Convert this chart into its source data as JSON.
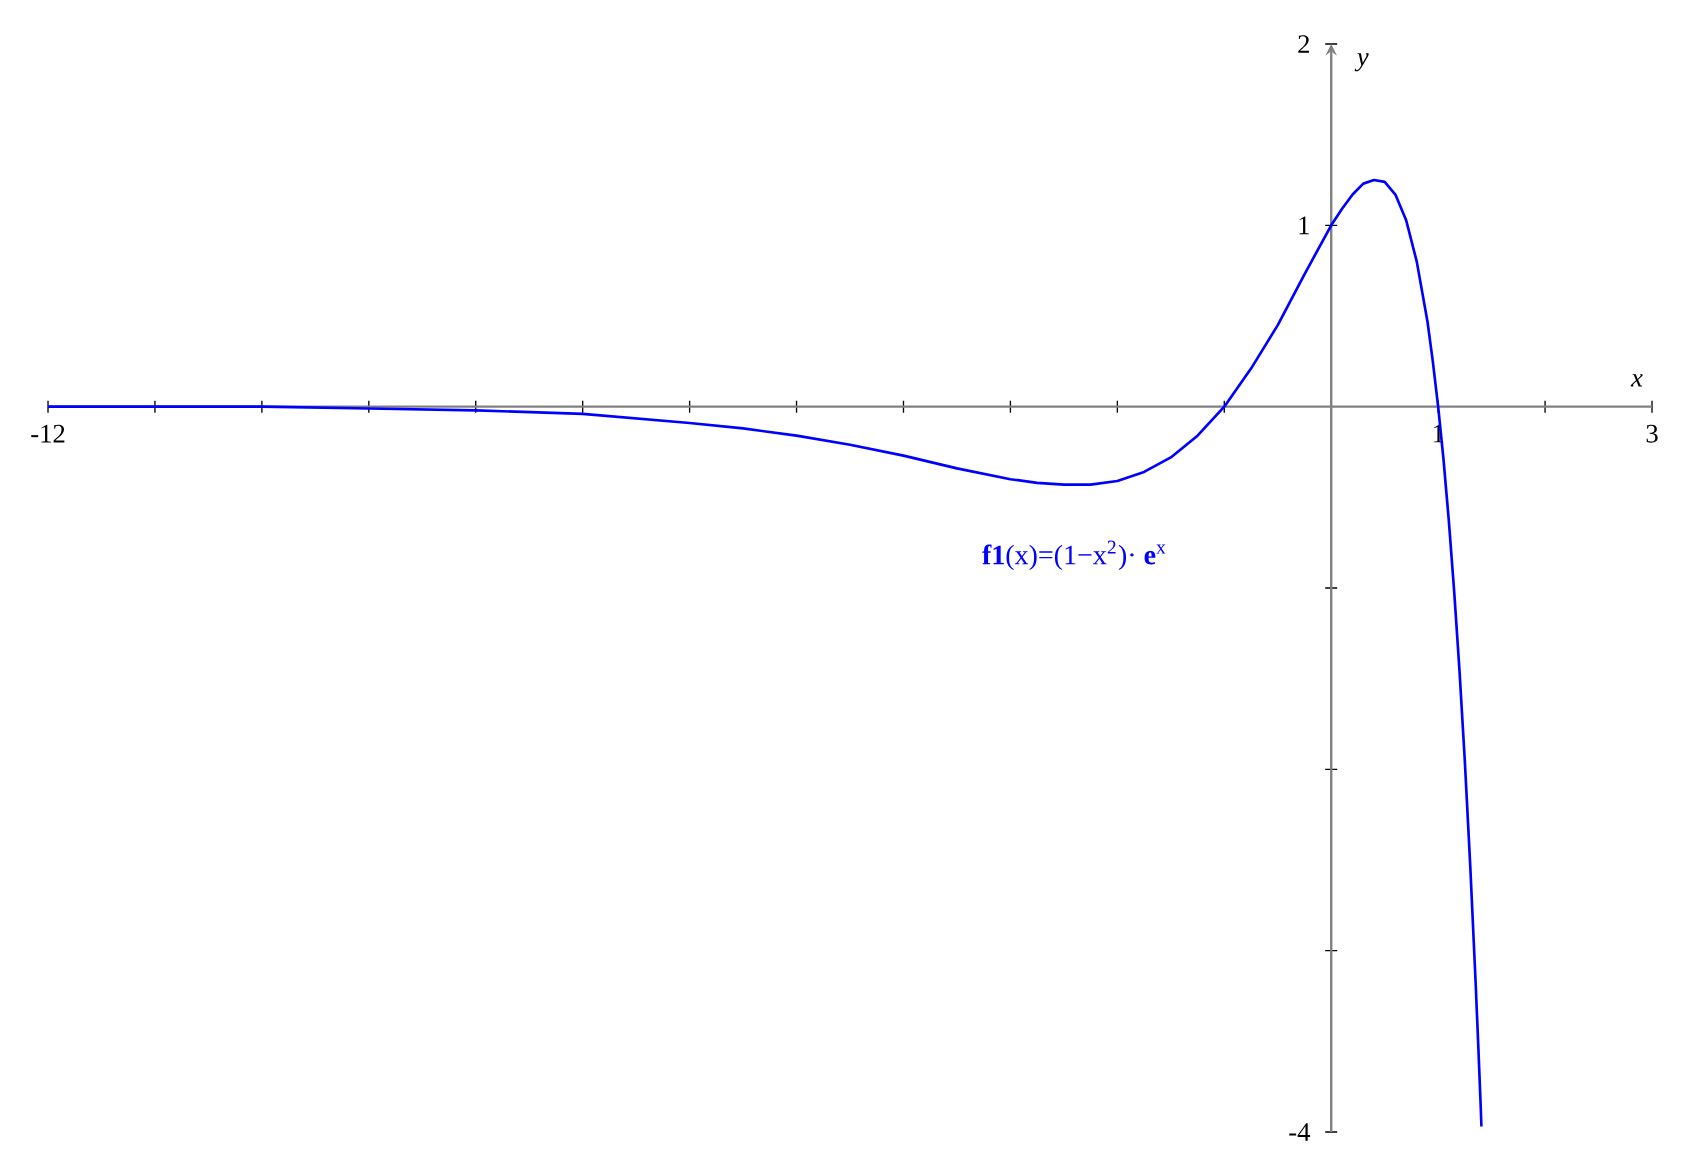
{
  "chart_data": {
    "type": "line",
    "xlabel": "x",
    "ylabel": "y",
    "x": [
      -12,
      -11,
      -10,
      -9,
      -8,
      -7,
      -6,
      -5.5,
      -5,
      -4.5,
      -4,
      -3.5,
      -3,
      -2.75,
      -2.5,
      -2.25,
      -2,
      -1.75,
      -1.5,
      -1.25,
      -1,
      -0.75,
      -0.5,
      -0.25,
      0,
      0.1,
      0.2,
      0.3,
      0.4,
      0.5,
      0.6,
      0.7,
      0.8,
      0.9,
      0.95,
      1,
      1.05,
      1.1,
      1.15,
      1.2,
      1.25,
      1.3,
      1.35,
      1.375,
      1.4,
      1.405
    ],
    "series": [
      {
        "name": "**f1**(x)=(1−x$^{2}$)· **e**$^{x}$",
        "color": "#0000ff",
        "values": [
          0,
          0,
          0,
          -0.01,
          -0.02,
          -0.04,
          -0.09,
          -0.12,
          -0.16,
          -0.21,
          -0.27,
          -0.34,
          -0.4,
          -0.42,
          -0.43,
          -0.43,
          -0.41,
          -0.36,
          -0.28,
          -0.16,
          0,
          0.21,
          0.45,
          0.73,
          1,
          1.09,
          1.17,
          1.23,
          1.25,
          1.24,
          1.17,
          1.03,
          0.8,
          0.47,
          0.25,
          0,
          -0.29,
          -0.63,
          -1.02,
          -1.46,
          -1.96,
          -2.53,
          -3.17,
          -3.52,
          -3.89,
          -3.97
        ]
      }
    ],
    "xlim": [
      -12,
      3
    ],
    "ylim": [
      -4,
      2
    ],
    "xticks": [
      -12,
      {
        "value": -11,
        "label": null
      },
      {
        "value": -10,
        "label": null
      },
      {
        "value": -9,
        "label": null
      },
      {
        "value": -8,
        "label": null
      },
      {
        "value": -7,
        "label": null
      },
      {
        "value": -6,
        "label": null
      },
      {
        "value": -5,
        "label": null
      },
      {
        "value": -4,
        "label": null
      },
      {
        "value": -3,
        "label": null
      },
      {
        "value": -2,
        "label": null
      },
      {
        "value": -1,
        "label": null
      },
      1,
      {
        "value": 2,
        "label": null
      },
      3
    ],
    "yticks": [
      -4,
      {
        "value": -3,
        "label": null
      },
      {
        "value": -2,
        "label": null
      },
      {
        "value": -1,
        "label": null
      },
      1,
      2
    ]
  }
}
